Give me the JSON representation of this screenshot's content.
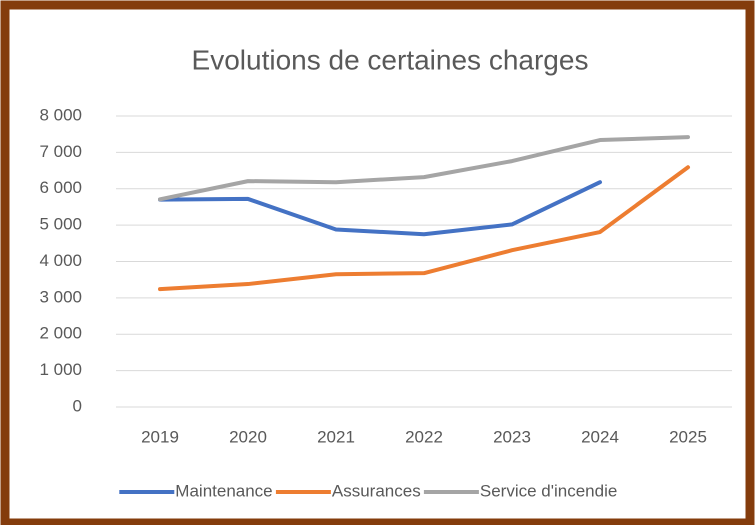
{
  "chart_data": {
    "type": "line",
    "title": "Evolutions de certaines charges",
    "categories": [
      "2019",
      "2020",
      "2021",
      "2022",
      "2023",
      "2024",
      "2025"
    ],
    "series": [
      {
        "name": "Maintenance",
        "color": "#4472c4",
        "values": [
          5700,
          5720,
          4880,
          4750,
          5020,
          6180,
          null
        ]
      },
      {
        "name": "Assurances",
        "color": "#ed7d31",
        "values": [
          3240,
          3380,
          3650,
          3680,
          4310,
          4810,
          6590
        ]
      },
      {
        "name": "Service d'incendie",
        "color": "#a5a5a5",
        "values": [
          5710,
          6210,
          6180,
          6320,
          6760,
          7340,
          7420
        ]
      }
    ],
    "ylim": [
      0,
      8000
    ],
    "yticks": [
      0,
      {
        "value": 1000,
        "label": "1 000"
      },
      {
        "value": 2000,
        "label": "2 000"
      },
      {
        "value": 3000,
        "label": "3 000"
      },
      {
        "value": 4000,
        "label": "4 000"
      },
      {
        "value": 5000,
        "label": "5 000"
      },
      {
        "value": 6000,
        "label": "6 000"
      },
      {
        "value": 7000,
        "label": "7 000"
      },
      {
        "value": 8000,
        "label": "8 000"
      }
    ],
    "grid": true,
    "legend": "bottom"
  }
}
